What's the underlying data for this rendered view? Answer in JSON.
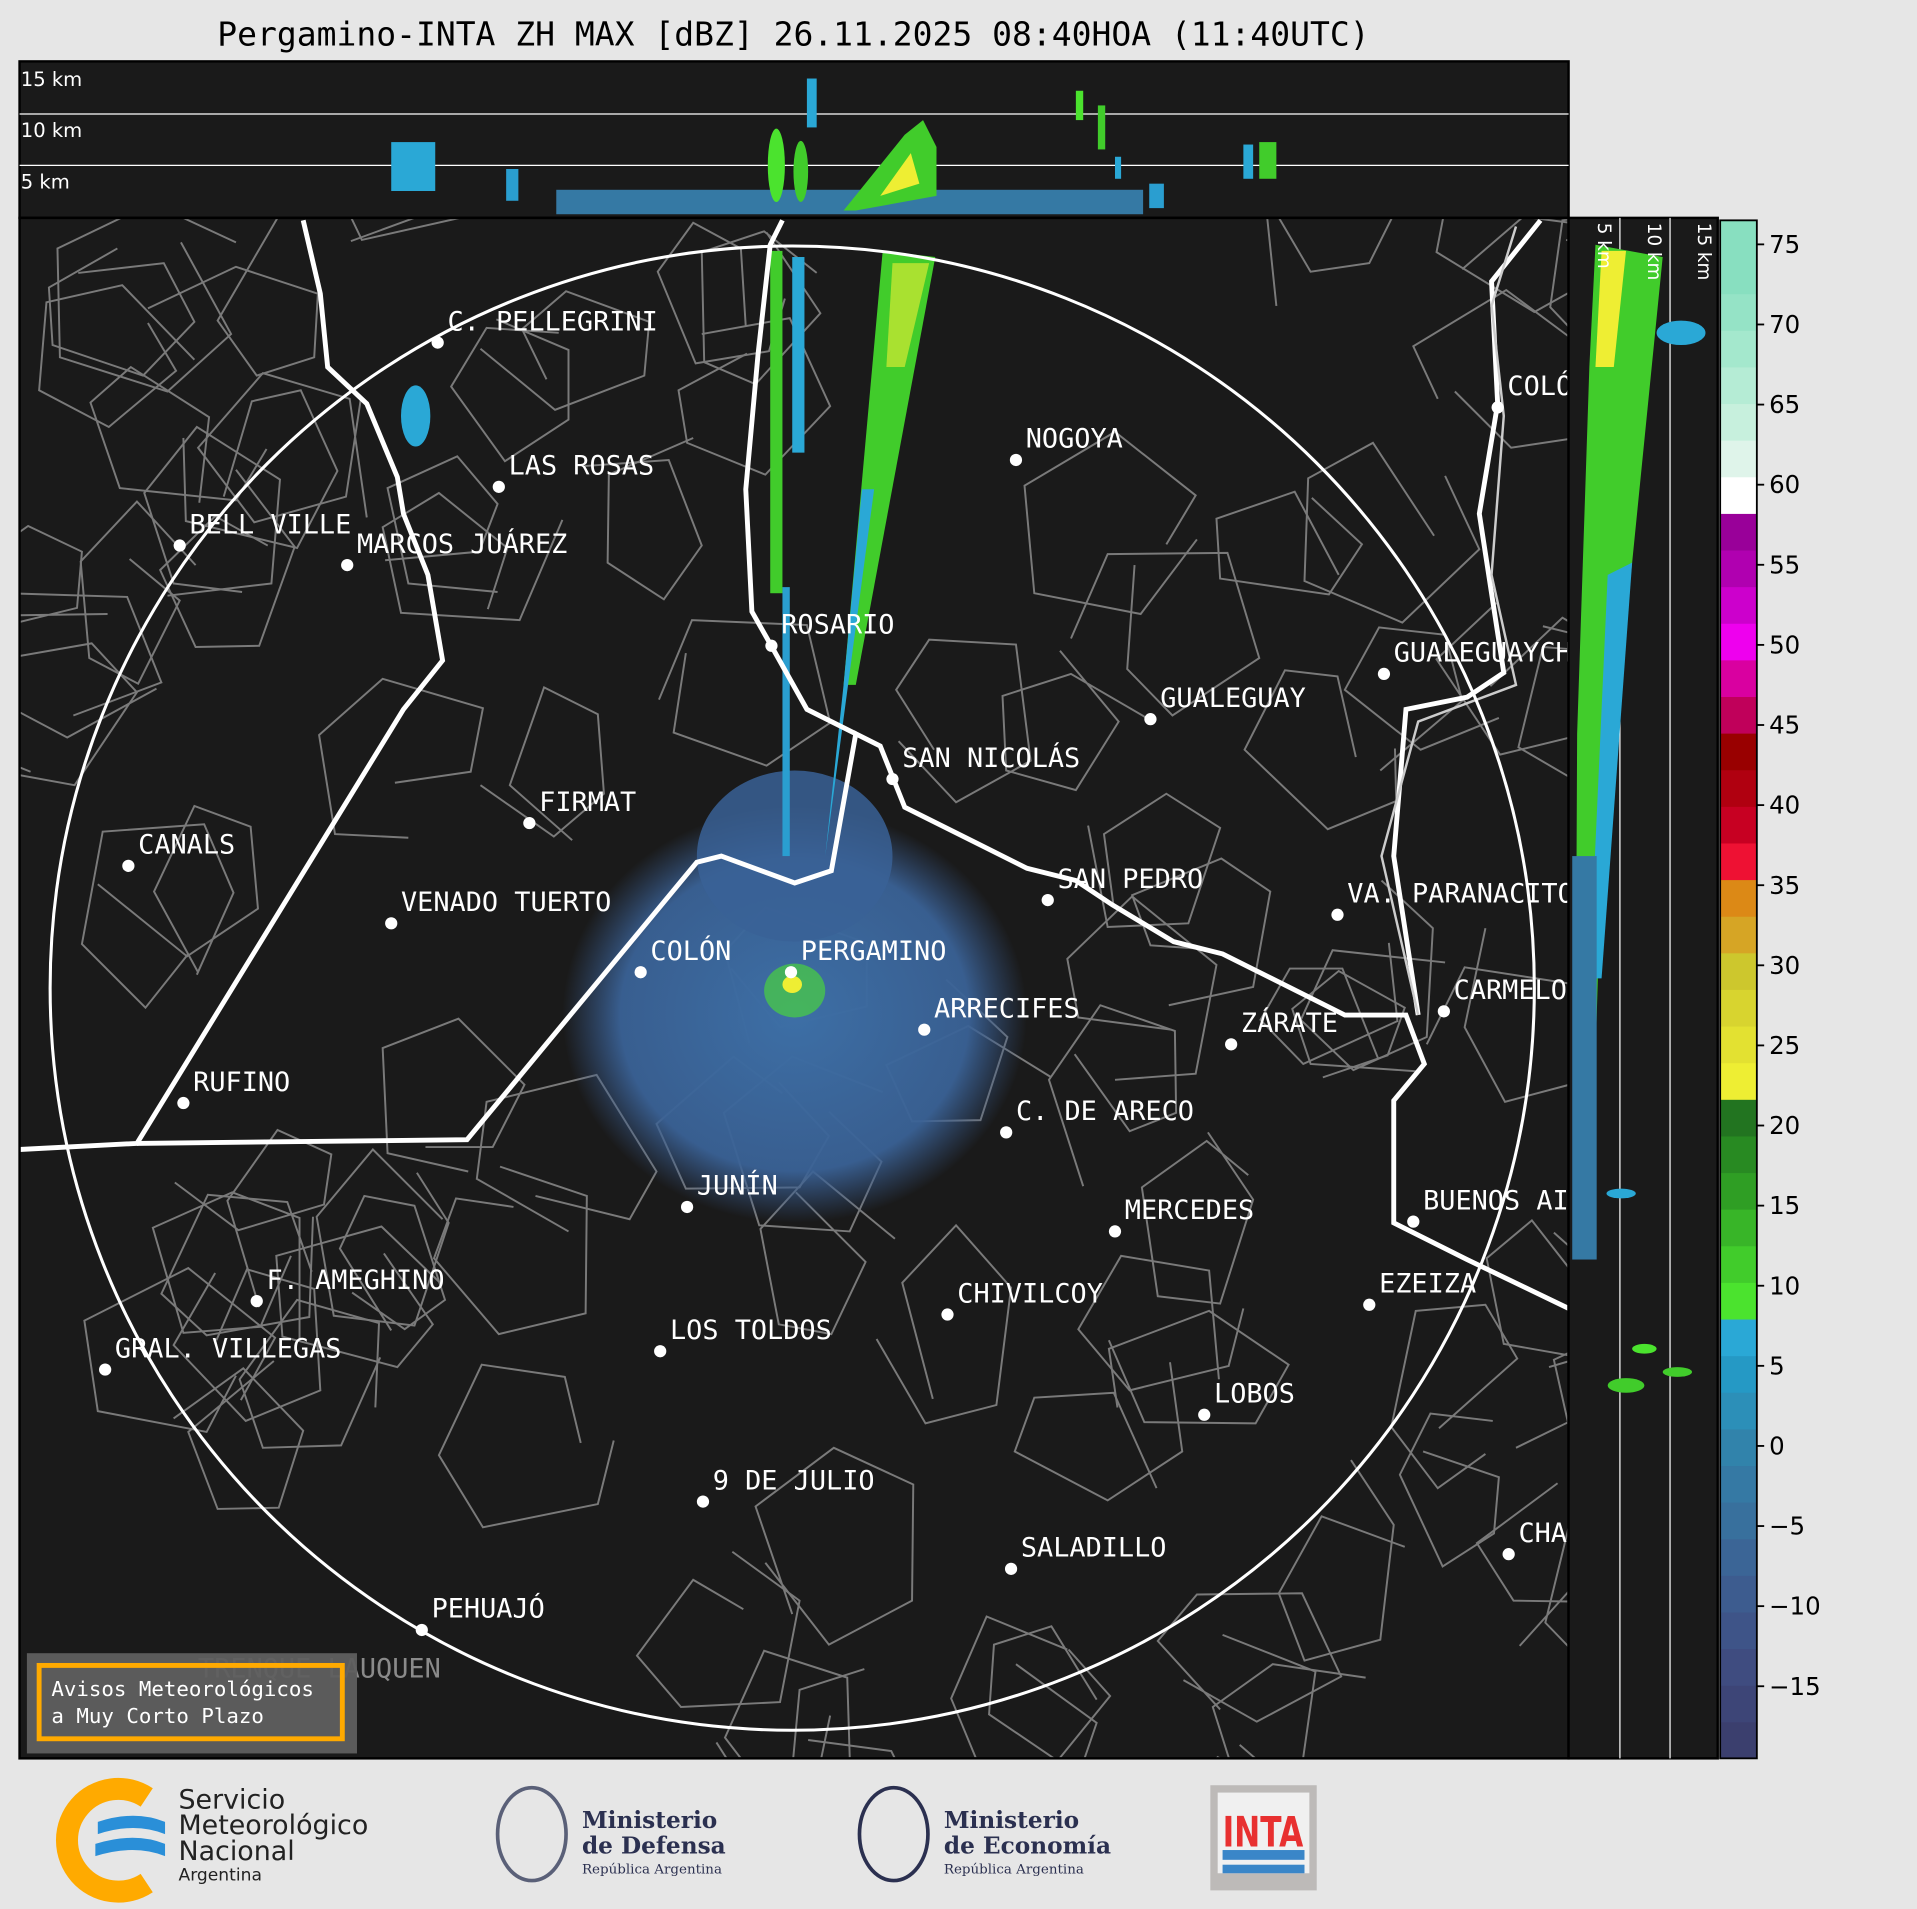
{
  "title": "Pergamino-INTA ZH MAX [dBZ] 26.11.2025 08:40HOA (11:40UTC)",
  "top_panel": {
    "height_labels": [
      "15 km",
      "10 km",
      "5 km"
    ]
  },
  "side_panel": {
    "height_labels": [
      "5 km",
      "10 km",
      "15 km"
    ]
  },
  "colorbar": {
    "unit": "dBZ",
    "ticks": [
      "75",
      "70",
      "65",
      "60",
      "55",
      "50",
      "45",
      "40",
      "35",
      "30",
      "25",
      "20",
      "15",
      "10",
      "5",
      "0",
      "−5",
      "−10",
      "−15"
    ],
    "range": [
      -19.5,
      76.5
    ],
    "colors": [
      "#3b3f6e",
      "#3d4577",
      "#3f4c80",
      "#3e5488",
      "#3d5c8f",
      "#3b6596",
      "#38709d",
      "#3579a4",
      "#3183ab",
      "#2c8fb8",
      "#2599c5",
      "#2aa8d6",
      "#4be32e",
      "#41cc2b",
      "#38b528",
      "#2f9e24",
      "#288a22",
      "#227420",
      "#eeee33",
      "#e3e131",
      "#d8d42f",
      "#cdc72d",
      "#d6a525",
      "#dc8916",
      "#ee1133",
      "#c70022",
      "#b00010",
      "#990000",
      "#c0005a",
      "#d900a0",
      "#ee00ee",
      "#cc00cc",
      "#b000b0",
      "#990099",
      "#ffffff",
      "#dff4ea",
      "#c7f0dd",
      "#b5ecd5",
      "#a4e8cd",
      "#95e3c6",
      "#88dfc0",
      "#88dfc0"
    ]
  },
  "cities": [
    "C. PELLEGRINI",
    "LAS ROSAS",
    "BELL VILLE",
    "MARCOS JUÁREZ",
    "ROSARIO",
    "NOGOYA",
    "COLÓN",
    "GUALEGUAYCHÚ",
    "GUALEGUAY",
    "SAN NICOLÁS",
    "FIRMAT",
    "CANALS",
    "VENADO TUERTO",
    "SAN PEDRO",
    "VA. PARANACITO",
    "COLÓN",
    "PERGAMINO",
    "ARRECIFES",
    "ZÁRATE",
    "CARMELO",
    "RUFINO",
    "C. DE ARECO",
    "JUNÍN",
    "MERCEDES",
    "BUENOS AIRES",
    "F. AMEGHINO",
    "EZEIZA",
    "CHIVILCOY",
    "LOS TOLDOS",
    "GRAL. VILLEGAS",
    "LOBOS",
    "9 DE JULIO",
    "CHASCOMÚS",
    "SALADILLO",
    "PEHUAJÓ"
  ],
  "faded_label": "TRENQUE LAUQUEN",
  "warning_box": {
    "line1": "Avisos Meteorológicos",
    "line2": "a Muy Corto Plazo",
    "border_color": "#ffaa00"
  },
  "logos": {
    "smn": {
      "lines": [
        "Servicio",
        "Meteorológico",
        "Nacional"
      ],
      "sub": "Argentina"
    },
    "defensa": {
      "lines": [
        "Ministerio",
        "de Defensa"
      ],
      "sub": "República Argentina"
    },
    "economia": {
      "lines": [
        "Ministerio",
        "de Economía"
      ],
      "sub": "República Argentina"
    },
    "inta": {
      "text": "INTA"
    }
  }
}
